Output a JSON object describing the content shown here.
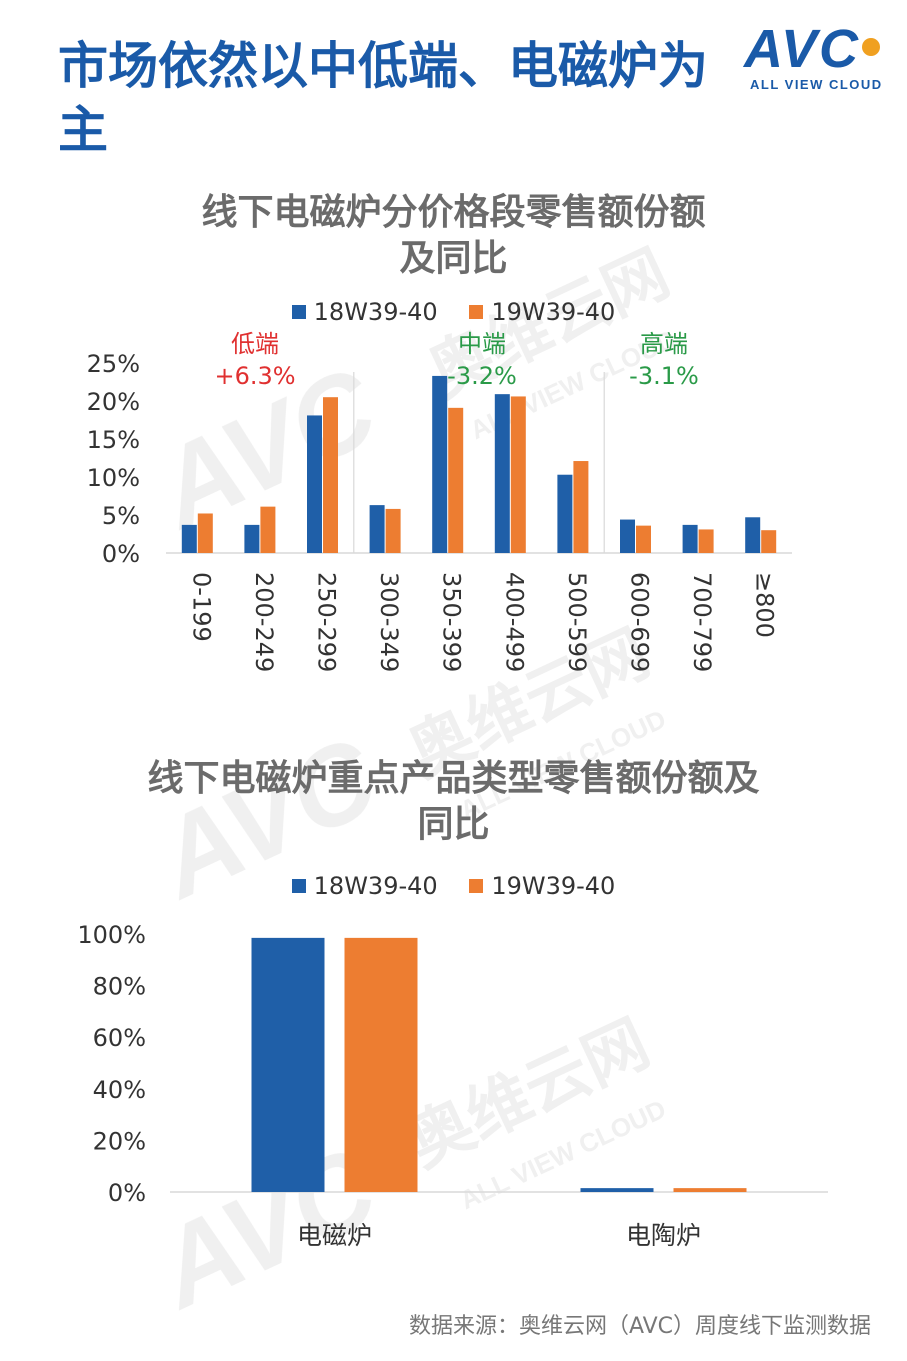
{
  "page": {
    "headline": "市场依然以中低端、电磁炉为主",
    "logo": {
      "text": "AVC",
      "subtitle": "ALL VIEW CLOUD"
    },
    "source": "数据来源：奥维云网（AVC）周度线下监测数据",
    "watermark": {
      "text_cn": "奥维云网",
      "text_en": "ALL VIEW CLOUD",
      "mark": "AVC"
    }
  },
  "colors": {
    "series1": "#1f5fa8",
    "series2": "#ed7d31",
    "grid": "#d9d9d9",
    "title": "#6b6b6b",
    "red": "#e03030",
    "green": "#2a9a48"
  },
  "chart_data": [
    {
      "type": "bar",
      "title": "线下电磁炉分价格段零售额份额及同比",
      "categories": [
        "0-199",
        "200-249",
        "250-299",
        "300-349",
        "350-399",
        "400-499",
        "500-599",
        "600-699",
        "700-799",
        "≥800"
      ],
      "series": [
        {
          "name": "18W39-40",
          "values": [
            3.7,
            3.7,
            18.1,
            6.3,
            23.3,
            20.9,
            10.3,
            4.4,
            3.7,
            4.7
          ]
        },
        {
          "name": "19W39-40",
          "values": [
            5.2,
            6.1,
            20.5,
            5.8,
            19.1,
            20.6,
            12.1,
            3.6,
            3.1,
            3.0
          ]
        }
      ],
      "ylim": [
        0,
        25
      ],
      "yticks": [
        "0%",
        "5%",
        "10%",
        "15%",
        "20%",
        "25%"
      ],
      "segments": [
        {
          "label": "低端",
          "change": "+6.3%",
          "color": "red"
        },
        {
          "label": "中端",
          "change": "-3.2%",
          "color": "green"
        },
        {
          "label": "高端",
          "change": "-3.1%",
          "color": "green"
        }
      ],
      "legend": "top"
    },
    {
      "type": "bar",
      "title": "线下电磁炉重点产品类型零售额份额及同比",
      "categories": [
        "电磁炉",
        "电陶炉"
      ],
      "series": [
        {
          "name": "18W39-40",
          "values": [
            98.5,
            1.5
          ]
        },
        {
          "name": "19W39-40",
          "values": [
            98.5,
            1.5
          ]
        }
      ],
      "ylim": [
        0,
        100
      ],
      "yticks": [
        "0%",
        "20%",
        "40%",
        "60%",
        "80%",
        "100%"
      ],
      "legend": "top"
    }
  ]
}
